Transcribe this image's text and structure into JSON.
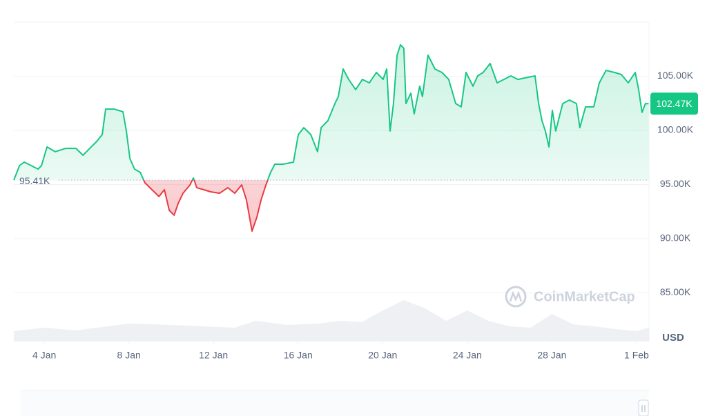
{
  "chart_data": {
    "type": "line",
    "xlim": [
      2.56,
      32.59
    ],
    "ylim": [
      80510,
      110000
    ],
    "y2lim": [
      0,
      100
    ],
    "xticks": [
      {
        "value": 4,
        "label": "4 Jan"
      },
      {
        "value": 8,
        "label": "8 Jan"
      },
      {
        "value": 12,
        "label": "12 Jan"
      },
      {
        "value": 16,
        "label": "16 Jan"
      },
      {
        "value": 20,
        "label": "20 Jan"
      },
      {
        "value": 24,
        "label": "24 Jan"
      },
      {
        "value": 28,
        "label": "28 Jan"
      },
      {
        "value": 32,
        "label": "1 Feb"
      }
    ],
    "yticks": [
      {
        "value": 85000,
        "label": "85.00K"
      },
      {
        "value": 90000,
        "label": "90.00K"
      },
      {
        "value": 95000,
        "label": "95.00K"
      },
      {
        "value": 100000,
        "label": "100.00K"
      },
      {
        "value": 105000,
        "label": "105.00K"
      }
    ],
    "grid": true,
    "baseline": {
      "value": 95410,
      "label": "95.41K",
      "color_above": "#16c784",
      "color_below": "#ea3943"
    },
    "last_label": "102.47K",
    "currency": "USD",
    "watermark": "CoinMarketCap",
    "series": [
      {
        "color": "#16c784",
        "x": [
          2.56,
          2.83,
          3.05,
          3.38,
          3.71,
          3.87,
          4.13,
          4.52,
          5.01,
          5.5,
          5.83,
          6.15,
          6.48,
          6.74,
          6.9,
          7.3,
          7.72,
          7.88,
          8.05,
          8.27,
          8.54,
          8.76,
          9.09,
          9.42,
          9.68,
          9.91,
          10.14,
          10.33,
          10.56,
          10.89,
          11.05,
          11.21,
          11.54,
          11.86,
          12.29,
          12.68,
          13.01,
          13.33,
          13.56,
          13.82,
          14.05,
          14.25,
          14.48,
          14.7,
          14.9,
          15.29,
          15.78,
          16.01,
          16.27,
          16.6,
          16.92,
          17.09,
          17.41,
          17.74,
          17.9,
          18.13,
          18.39,
          18.72,
          19.04,
          19.37,
          19.7,
          20.02,
          20.19,
          20.35,
          20.51,
          20.68,
          20.84,
          21.0,
          21.1,
          21.33,
          21.49,
          21.75,
          21.88,
          22.14,
          22.47,
          22.8,
          23.12,
          23.45,
          23.71,
          23.94,
          24.27,
          24.49,
          24.75,
          25.08,
          25.41,
          25.73,
          26.06,
          26.39,
          26.71,
          27.2,
          27.37,
          27.53,
          27.69,
          27.86,
          28.02,
          28.18,
          28.51,
          28.83,
          29.16,
          29.32,
          29.59,
          29.98,
          30.24,
          30.56,
          30.96,
          31.28,
          31.61,
          31.94,
          32.1,
          32.26,
          32.42,
          32.59
        ],
        "values": [
          95410,
          96750,
          97070,
          96750,
          96430,
          96750,
          98470,
          98030,
          98340,
          98340,
          97710,
          98340,
          98980,
          99620,
          101970,
          101970,
          101720,
          99940,
          97390,
          96430,
          96120,
          95160,
          94520,
          93890,
          94520,
          92610,
          92170,
          93250,
          94200,
          94970,
          95610,
          94710,
          94520,
          94330,
          94200,
          94710,
          94200,
          94970,
          93570,
          90700,
          91980,
          93570,
          94970,
          96120,
          96880,
          96880,
          97070,
          99620,
          100250,
          99620,
          98030,
          100250,
          100890,
          102480,
          103120,
          105670,
          104710,
          103760,
          104710,
          104390,
          105350,
          104710,
          105670,
          99940,
          102480,
          106940,
          107900,
          107580,
          102480,
          103440,
          101530,
          104080,
          103120,
          106940,
          105670,
          105350,
          104710,
          102480,
          102170,
          105350,
          104080,
          105030,
          105350,
          106180,
          104390,
          104710,
          105030,
          104710,
          104840,
          105030,
          102480,
          100890,
          99940,
          98470,
          101850,
          99940,
          102480,
          102800,
          102480,
          100250,
          102170,
          102170,
          104390,
          105540,
          105350,
          105160,
          104390,
          105350,
          103760,
          101660,
          102480,
          102470
        ]
      },
      {
        "axis": "y2",
        "color": "#eef0f3",
        "x": [
          2.56,
          4,
          5.5,
          7,
          8,
          9,
          10,
          11.5,
          13,
          14,
          15.5,
          17,
          18,
          19,
          20,
          21,
          22,
          23,
          24,
          25,
          26,
          27,
          28,
          29,
          30,
          31,
          32,
          32.59
        ],
        "values": [
          15,
          20,
          16,
          22,
          26,
          25,
          24,
          22,
          20,
          30,
          24,
          26,
          30,
          28,
          45,
          60,
          48,
          30,
          45,
          30,
          22,
          20,
          40,
          25,
          22,
          18,
          15,
          20
        ]
      }
    ]
  }
}
